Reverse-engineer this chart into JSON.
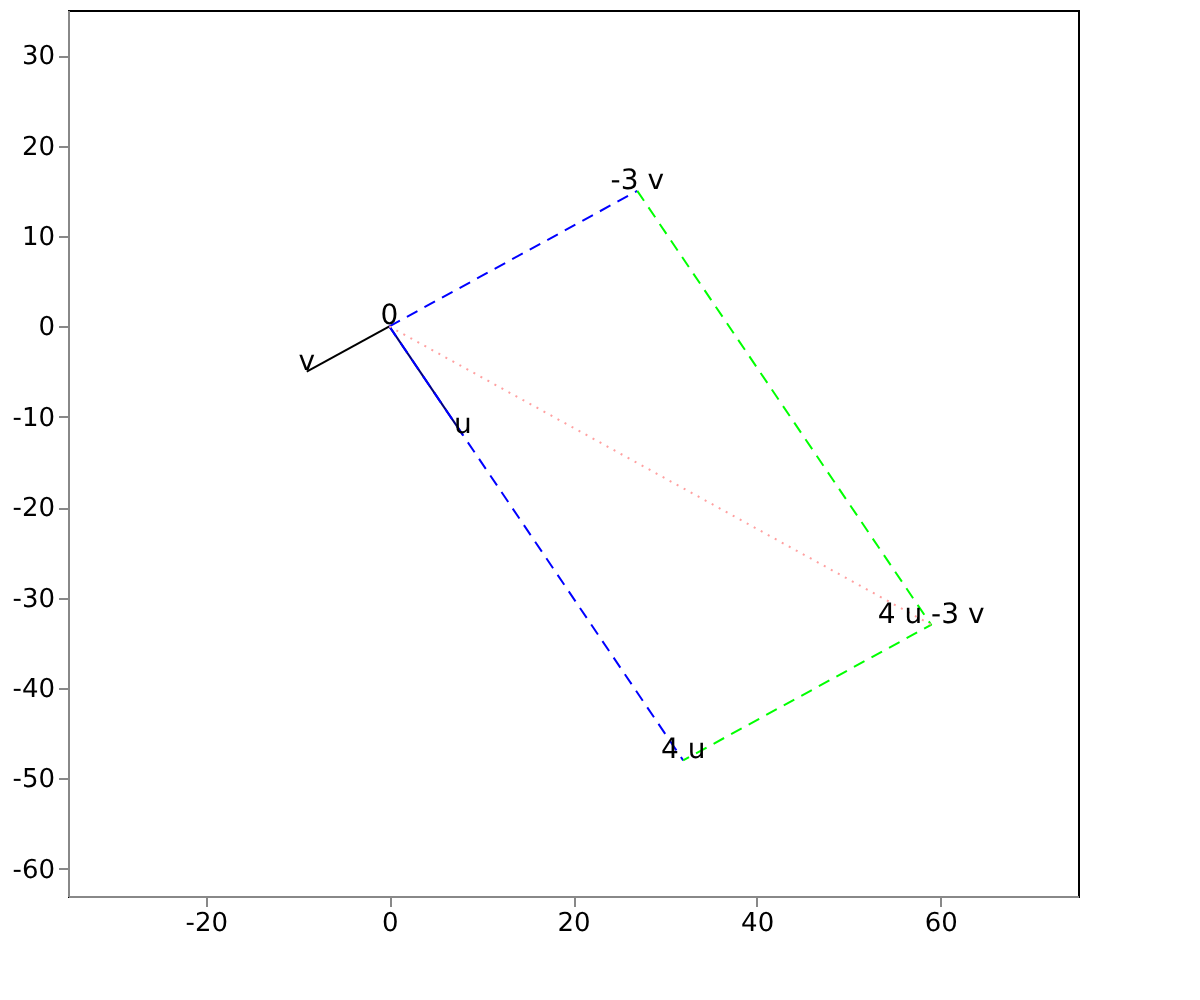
{
  "chart_data": {
    "type": "line",
    "xlim": [
      -35,
      75
    ],
    "ylim": [
      -63,
      35
    ],
    "xticks": [
      -20,
      0,
      20,
      40,
      60
    ],
    "yticks": [
      -60,
      -50,
      -40,
      -30,
      -20,
      -10,
      0,
      10,
      20,
      30
    ],
    "grid": false,
    "series": [
      {
        "color": "#000080",
        "x": [
          0,
          8
        ],
        "values": [
          0,
          -12
        ],
        "line_style": "solid"
      },
      {
        "color": "#000000",
        "x": [
          0,
          -9
        ],
        "values": [
          0,
          -5
        ],
        "line_style": "solid"
      },
      {
        "color": "#0000ff",
        "x": [
          0,
          27
        ],
        "values": [
          0,
          15
        ],
        "line_style": "dashed"
      },
      {
        "color": "#0000ff",
        "x": [
          0,
          32
        ],
        "values": [
          0,
          -48
        ],
        "line_style": "dashed"
      },
      {
        "color": "#00ff00",
        "x": [
          27,
          59,
          32
        ],
        "values": [
          15,
          -33,
          -48
        ],
        "line_style": "dashed"
      },
      {
        "color": "#ffa0a0",
        "x": [
          0,
          59
        ],
        "values": [
          0,
          -33
        ],
        "line_style": "dotted"
      }
    ],
    "annotations": [
      {
        "text": "0",
        "x": 0,
        "y": 0
      },
      {
        "text": "u",
        "x": 8,
        "y": -12
      },
      {
        "text": "v",
        "x": -9,
        "y": -5
      },
      {
        "text": "-3 v",
        "x": 27,
        "y": 15
      },
      {
        "text": "4 u",
        "x": 32,
        "y": -48
      },
      {
        "text": "4 u -3 v",
        "x": 59,
        "y": -33
      }
    ]
  }
}
